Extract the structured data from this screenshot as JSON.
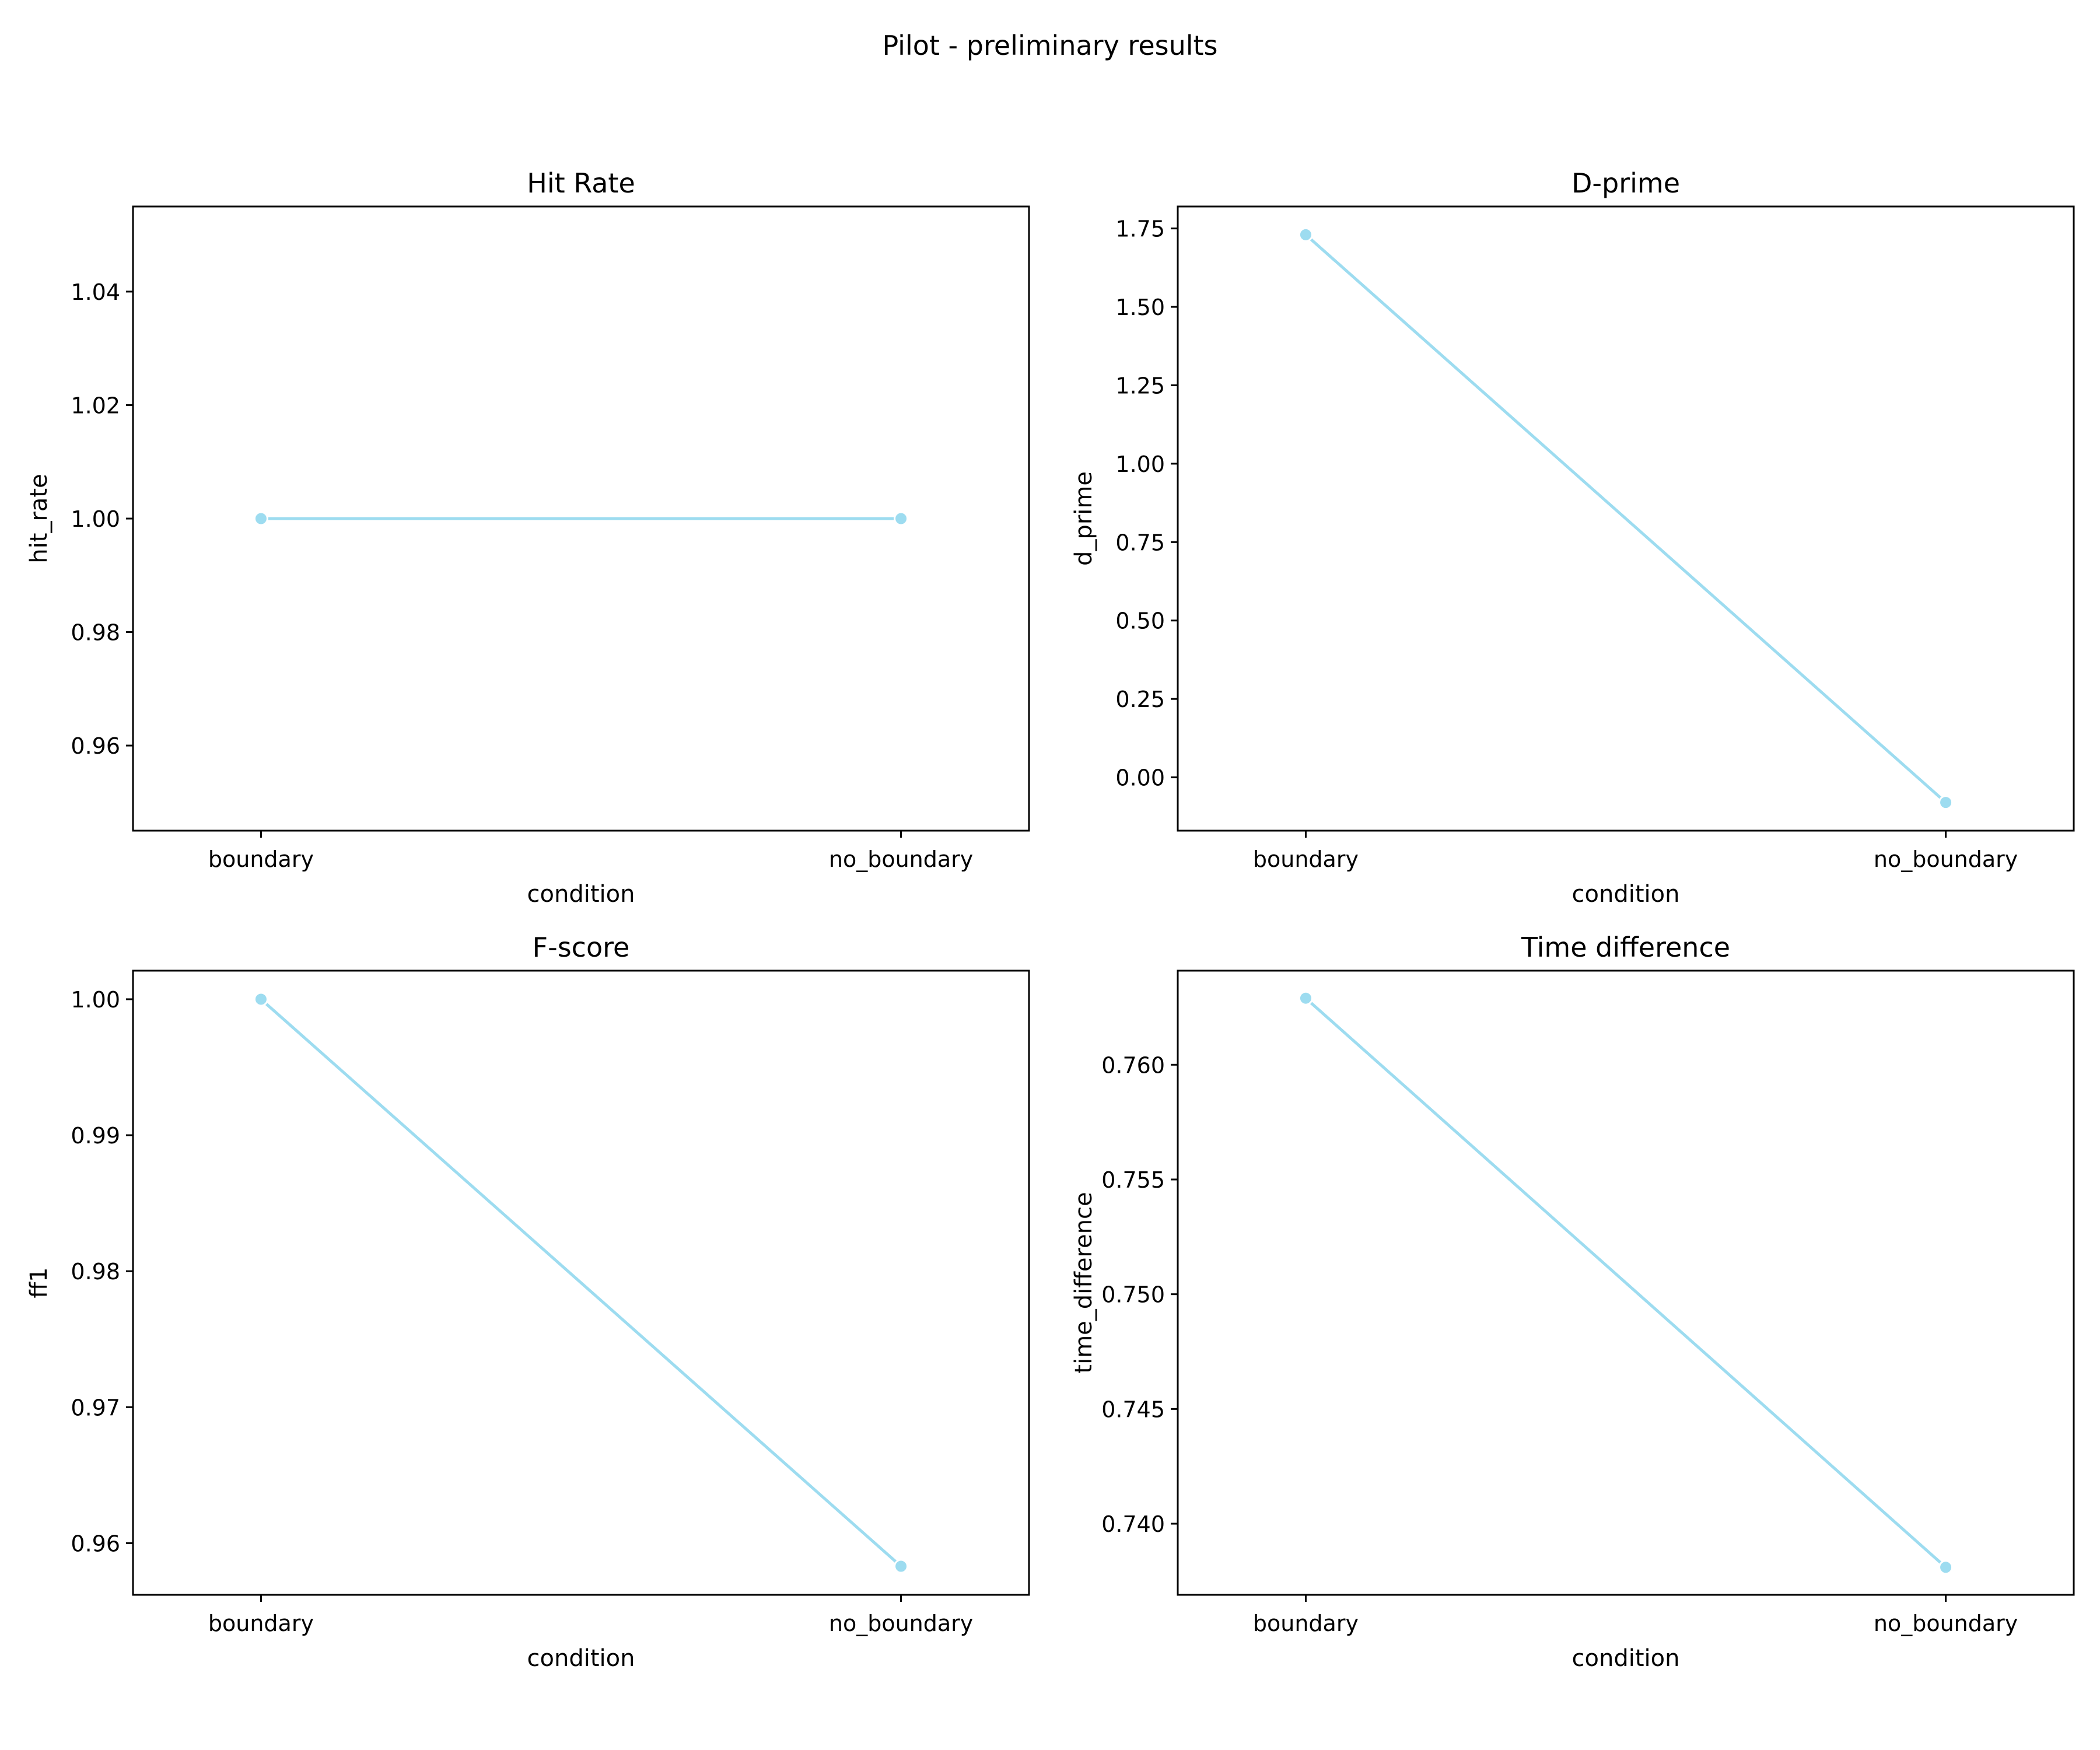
{
  "figure": {
    "suptitle": "Pilot - preliminary results",
    "line_color": "#9ddcf0",
    "marker_color": "#9ddcf0"
  },
  "chart_data": [
    {
      "type": "line",
      "title": "Hit Rate",
      "xlabel": "condition",
      "ylabel": "hit_rate",
      "categories": [
        "boundary",
        "no_boundary"
      ],
      "values": [
        1.0,
        1.0
      ],
      "ylim": [
        0.945,
        1.055
      ],
      "yticks": [
        0.96,
        0.98,
        1.0,
        1.02,
        1.04
      ],
      "ytick_labels": [
        "0.96",
        "0.98",
        "1.00",
        "1.02",
        "1.04"
      ],
      "grid": false
    },
    {
      "type": "line",
      "title": "D-prime",
      "xlabel": "condition",
      "ylabel": "d_prime",
      "categories": [
        "boundary",
        "no_boundary"
      ],
      "values": [
        1.73,
        -0.08
      ],
      "ylim": [
        -0.17,
        1.82
      ],
      "yticks": [
        0.0,
        0.25,
        0.5,
        0.75,
        1.0,
        1.25,
        1.5,
        1.75
      ],
      "ytick_labels": [
        "0.00",
        "0.25",
        "0.50",
        "0.75",
        "1.00",
        "1.25",
        "1.50",
        "1.75"
      ],
      "grid": false
    },
    {
      "type": "line",
      "title": "F-score",
      "xlabel": "condition",
      "ylabel": "ff1",
      "categories": [
        "boundary",
        "no_boundary"
      ],
      "values": [
        1.0,
        0.9583
      ],
      "ylim": [
        0.9562,
        1.0021
      ],
      "yticks": [
        0.96,
        0.97,
        0.98,
        0.99,
        1.0
      ],
      "ytick_labels": [
        "0.96",
        "0.97",
        "0.98",
        "0.99",
        "1.00"
      ],
      "grid": false
    },
    {
      "type": "line",
      "title": "Time difference",
      "xlabel": "condition",
      "ylabel": "time_difference",
      "categories": [
        "boundary",
        "no_boundary"
      ],
      "values": [
        0.7629,
        0.7381
      ],
      "ylim": [
        0.7369,
        0.7641
      ],
      "yticks": [
        0.74,
        0.745,
        0.75,
        0.755,
        0.76
      ],
      "ytick_labels": [
        "0.740",
        "0.745",
        "0.750",
        "0.755",
        "0.760"
      ],
      "grid": false
    }
  ]
}
